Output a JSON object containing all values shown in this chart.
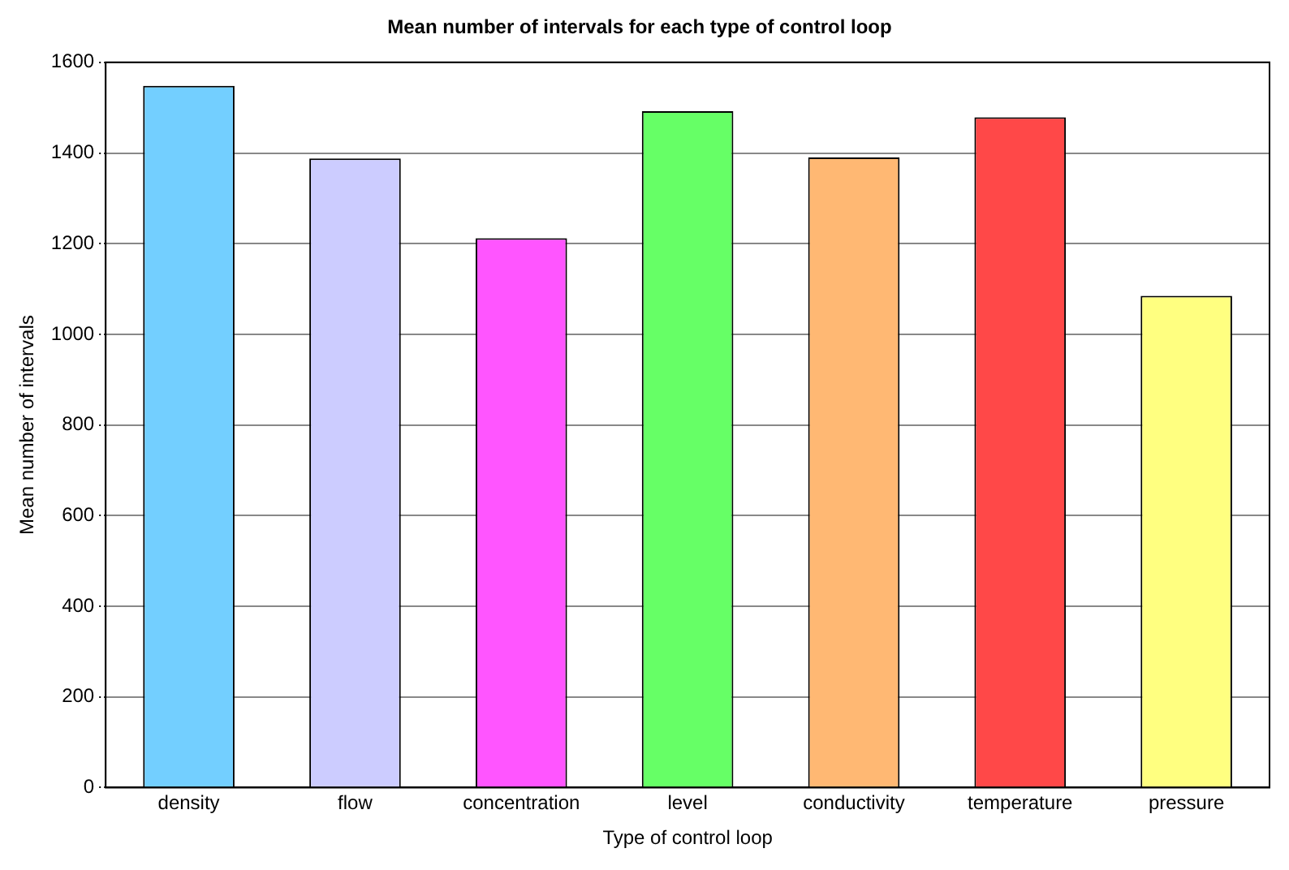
{
  "chart_data": {
    "type": "bar",
    "title": "Mean number of intervals for each type of control loop",
    "xlabel": "Type of control loop",
    "ylabel": "Mean number of intervals",
    "categories": [
      "density",
      "flow",
      "concentration",
      "level",
      "conductivity",
      "temperature",
      "pressure"
    ],
    "values": [
      1548,
      1388,
      1212,
      1492,
      1390,
      1479,
      1085
    ],
    "colors": [
      "#73cfff",
      "#ccccff",
      "#ff55ff",
      "#66ff66",
      "#ffb873",
      "#ff4848",
      "#ffff80"
    ],
    "ylim": [
      0,
      1600
    ],
    "yticks": [
      0,
      200,
      400,
      600,
      800,
      1000,
      1200,
      1400,
      1600
    ],
    "grid": "y",
    "legend": false
  }
}
